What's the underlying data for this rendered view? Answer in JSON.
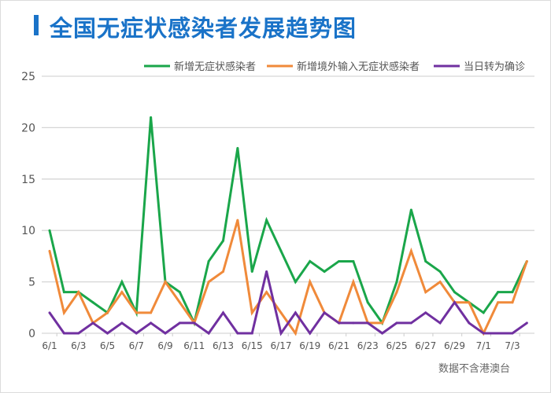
{
  "title": "全国无症状感染者发展趋势图",
  "note": "数据不含港澳台",
  "chart_data": {
    "type": "line",
    "title": "全国无症状感染者发展趋势图",
    "categories": [
      "6/1",
      "6/2",
      "6/3",
      "6/4",
      "6/5",
      "6/6",
      "6/7",
      "6/8",
      "6/9",
      "6/10",
      "6/11",
      "6/12",
      "6/13",
      "6/14",
      "6/15",
      "6/16",
      "6/17",
      "6/18",
      "6/19",
      "6/20",
      "6/21",
      "6/22",
      "6/23",
      "6/24",
      "6/25",
      "6/26",
      "6/27",
      "6/28",
      "6/29",
      "6/30",
      "7/1",
      "7/2",
      "7/3",
      "7/4"
    ],
    "x_tick_labels": [
      "6/1",
      "6/3",
      "6/5",
      "6/7",
      "6/9",
      "6/11",
      "6/13",
      "6/15",
      "6/17",
      "6/19",
      "6/21",
      "6/23",
      "6/25",
      "6/27",
      "6/29",
      "7/1",
      "7/3"
    ],
    "y_ticks": [
      0,
      5,
      10,
      15,
      20,
      25
    ],
    "ylim": [
      0,
      25
    ],
    "grid": true,
    "legend_position": "top-right",
    "series": [
      {
        "name": "新增无症状感染者",
        "color": "#1aa64a",
        "values": [
          10,
          4,
          4,
          3,
          2,
          5,
          2,
          21,
          5,
          4,
          1,
          7,
          9,
          18,
          6,
          11,
          8,
          5,
          7,
          6,
          7,
          7,
          3,
          1,
          5,
          12,
          7,
          6,
          4,
          3,
          2,
          4,
          4,
          7
        ]
      },
      {
        "name": "新增境外输入无症状感染者",
        "color": "#f08a3a",
        "values": [
          8,
          2,
          4,
          1,
          2,
          4,
          2,
          2,
          5,
          3,
          1,
          5,
          6,
          11,
          2,
          4,
          2,
          0,
          5,
          2,
          1,
          5,
          1,
          1,
          4,
          8,
          4,
          5,
          3,
          3,
          0,
          3,
          3,
          7
        ]
      },
      {
        "name": "当日转为确诊",
        "color": "#7030a0",
        "values": [
          2,
          0,
          0,
          1,
          0,
          1,
          0,
          1,
          0,
          1,
          1,
          0,
          2,
          0,
          0,
          6,
          0,
          2,
          0,
          2,
          1,
          1,
          1,
          0,
          1,
          1,
          2,
          1,
          3,
          1,
          0,
          0,
          0,
          1
        ]
      }
    ]
  }
}
